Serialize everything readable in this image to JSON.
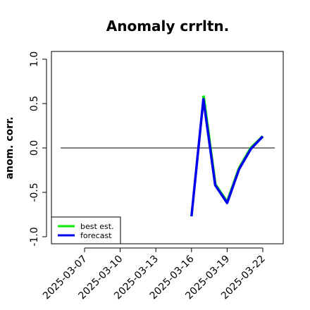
{
  "chart_data": {
    "type": "line",
    "title": "Anomaly crrltn.",
    "ylabel": "anom. corr.",
    "xlabel": "",
    "ylim": [
      -1.0,
      1.0
    ],
    "yticks": [
      "-1.0",
      "-0.5",
      "0.0",
      "0.5",
      "1.0"
    ],
    "x_tick_labels": [
      "2025-03-07",
      "2025-03-10",
      "2025-03-13",
      "2025-03-16",
      "2025-03-19",
      "2025-03-22"
    ],
    "highlighted_tick": "2025-03-13",
    "highlight_color": "#228B22",
    "x": [
      "2025-03-16",
      "2025-03-17",
      "2025-03-18",
      "2025-03-19",
      "2025-03-20",
      "2025-03-21",
      "2025-03-22"
    ],
    "series": [
      {
        "name": "best est.",
        "color": "#00ee00",
        "values": [
          null,
          0.59,
          -0.41,
          -0.61,
          -0.23,
          0.0,
          0.13
        ]
      },
      {
        "name": "forecast",
        "color": "#0000ee",
        "values": [
          -0.77,
          0.55,
          -0.42,
          -0.62,
          -0.24,
          -0.01,
          0.13
        ]
      }
    ],
    "reference_line": 0.0,
    "legend_position": "bottom-left",
    "grid": false
  }
}
